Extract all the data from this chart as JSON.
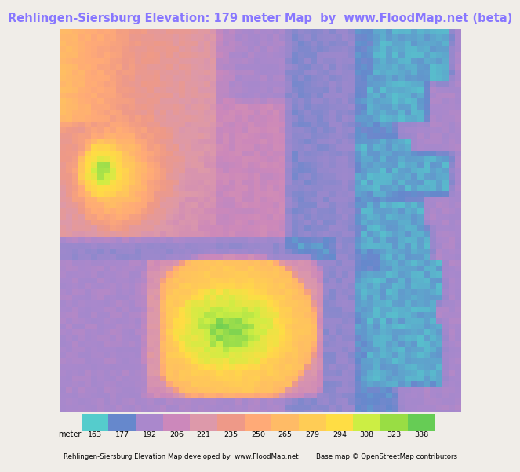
{
  "title": "Rehlingen-Siersburg Elevation: 179 meter Map  by  www.FloodMap.net (beta)",
  "title_color": "#8877ff",
  "title_fontsize": 10.5,
  "bg_color": "#f0ede8",
  "colorbar_values": [
    163,
    177,
    192,
    206,
    221,
    235,
    250,
    265,
    279,
    294,
    308,
    323,
    338
  ],
  "colorbar_colors": [
    "#55cccc",
    "#6688cc",
    "#aa88cc",
    "#cc88bb",
    "#dd99aa",
    "#ee9988",
    "#ffaa77",
    "#ffbb66",
    "#ffcc55",
    "#ffdd44",
    "#ccee44",
    "#99dd44",
    "#66cc55"
  ],
  "footer_left": "Rehlingen-Siersburg Elevation Map developed by  www.FloodMap.net",
  "footer_right": "Base map © OpenStreetMap contributors",
  "footer_fontsize": 6.2,
  "colorbar_label": "meter",
  "colorbar_label_fontsize": 7,
  "colorbar_tick_fontsize": 6.8
}
